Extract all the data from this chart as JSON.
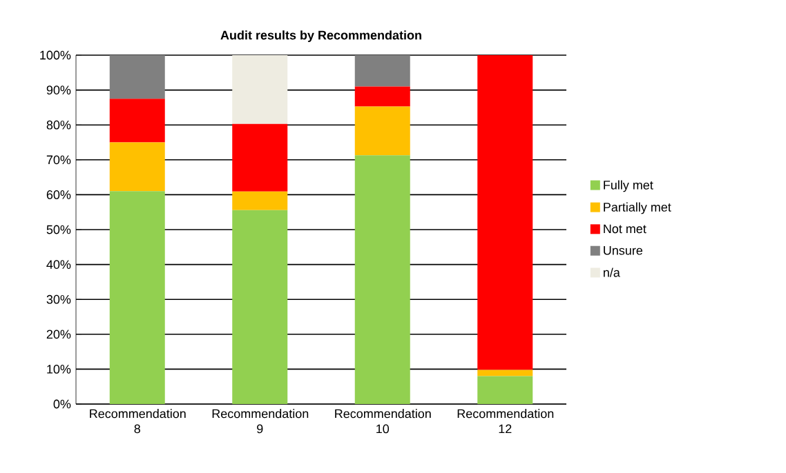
{
  "chart_data": {
    "type": "bar",
    "stacked": true,
    "title": "Audit results by Recommendation",
    "categories": [
      "Recommendation 8",
      "Recommendation 9",
      "Recommendation 10",
      "Recommendation 12"
    ],
    "series": [
      {
        "name": "Fully met",
        "color": "#92d050",
        "values": [
          61,
          55.6,
          71.3,
          8
        ]
      },
      {
        "name": "Partially met",
        "color": "#ffc000",
        "values": [
          14,
          5.3,
          14,
          1.8
        ]
      },
      {
        "name": "Not met",
        "color": "#ff0000",
        "values": [
          12.5,
          19.4,
          5.7,
          90.2
        ]
      },
      {
        "name": "Unsure",
        "color": "#808080",
        "values": [
          12.5,
          0,
          9,
          0
        ]
      },
      {
        "name": "n/a",
        "color": "#eeece1",
        "values": [
          0,
          19.7,
          0,
          0
        ]
      }
    ],
    "ylim": [
      0,
      100
    ],
    "yticks": [
      {
        "value": 0,
        "label": "0%"
      },
      {
        "value": 10,
        "label": "10%"
      },
      {
        "value": 20,
        "label": "20%"
      },
      {
        "value": 30,
        "label": "30%"
      },
      {
        "value": 40,
        "label": "40%"
      },
      {
        "value": 50,
        "label": "50%"
      },
      {
        "value": 60,
        "label": "60%"
      },
      {
        "value": 70,
        "label": "70%"
      },
      {
        "value": 80,
        "label": "80%"
      },
      {
        "value": 90,
        "label": "90%"
      },
      {
        "value": 100,
        "label": "100%"
      }
    ],
    "grid": "y",
    "legend": "right"
  }
}
